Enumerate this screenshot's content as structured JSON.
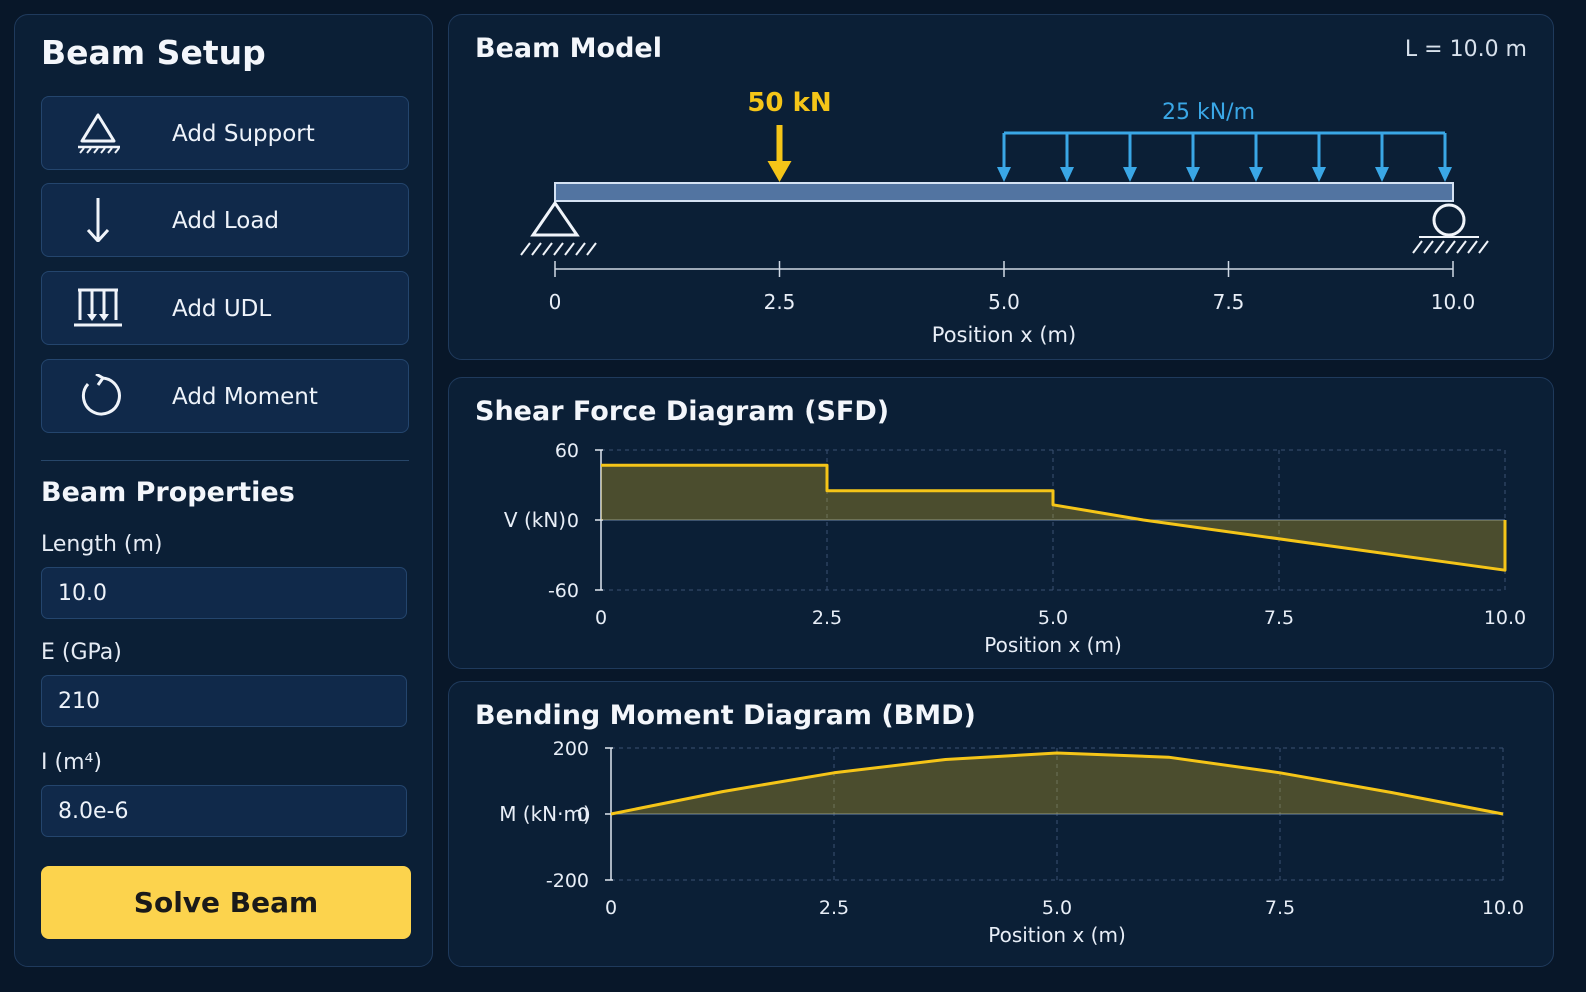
{
  "setup": {
    "title": "Beam Setup",
    "tools": [
      {
        "label": "Add Support",
        "icon": "support-icon"
      },
      {
        "label": "Add Load",
        "icon": "arrow-down-icon"
      },
      {
        "label": "Add UDL",
        "icon": "udl-icon"
      },
      {
        "label": "Add Moment",
        "icon": "moment-icon"
      }
    ]
  },
  "properties": {
    "title": "Beam Properties",
    "length_label": "Length (m)",
    "length_value": "10.0",
    "e_label": "E (GPa)",
    "e_value": "210",
    "i_label": "I (m⁴)",
    "i_value": "8.0e-6",
    "solve_label": "Solve Beam"
  },
  "model": {
    "title": "Beam Model",
    "length_readout": "L = 10.0 m",
    "point_load": {
      "label": "50 kN",
      "x": 2.5
    },
    "udl": {
      "label": "25 kN/m",
      "x_start": 5.0,
      "x_end": 10.0
    },
    "supports": [
      {
        "type": "pin",
        "x": 0
      },
      {
        "type": "roller",
        "x": 10.0
      }
    ],
    "axis": {
      "label": "Position x (m)",
      "ticks": [
        "0",
        "2.5",
        "5.0",
        "7.5",
        "10.0"
      ],
      "tick_values": [
        0,
        2.5,
        5.0,
        7.5,
        10.0
      ],
      "range": [
        0,
        10
      ]
    },
    "colors": {
      "beam": "#6b91c6",
      "point_load": "#f5c518",
      "udl": "#3aa7e6"
    }
  },
  "chart_data": [
    {
      "type": "area",
      "title": "Shear Force Diagram (SFD)",
      "xlabel": "Position x (m)",
      "ylabel": "V (kN)",
      "xlim": [
        0,
        10
      ],
      "ylim": [
        -60,
        60
      ],
      "x_ticks": [
        "0",
        "2.5",
        "5.0",
        "7.5",
        "10.0"
      ],
      "y_ticks": [
        "60",
        "0",
        "-60"
      ],
      "x": [
        0,
        2.5,
        2.5,
        5.0,
        5.0,
        6.0,
        10.0,
        10.0
      ],
      "values": [
        47,
        47,
        25,
        25,
        13,
        0,
        -43,
        0
      ],
      "grid": true,
      "color": "#f5c518"
    },
    {
      "type": "area",
      "title": "Bending Moment Diagram (BMD)",
      "xlabel": "Position x (m)",
      "ylabel": "M (kN·m)",
      "xlim": [
        0,
        10
      ],
      "ylim": [
        -200,
        200
      ],
      "x_ticks": [
        "0",
        "2.5",
        "5.0",
        "7.5",
        "10.0"
      ],
      "y_ticks": [
        "200",
        "0",
        "-200"
      ],
      "x": [
        0,
        1.25,
        2.5,
        3.75,
        5.0,
        6.25,
        7.5,
        8.75,
        10.0
      ],
      "values": [
        0,
        68,
        125,
        165,
        185,
        172,
        125,
        65,
        0
      ],
      "grid": true,
      "color": "#f5c518"
    }
  ]
}
